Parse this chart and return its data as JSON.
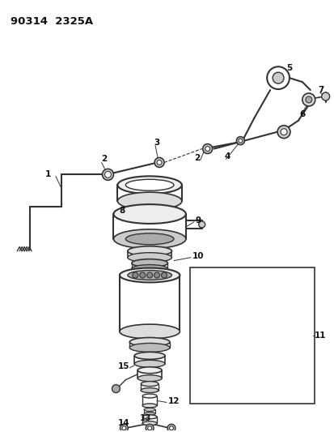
{
  "title": "90314  2325A",
  "bg_color": "#ffffff",
  "line_color": "#333333",
  "label_color": "#111111",
  "fig_width": 4.14,
  "fig_height": 5.33,
  "dpi": 100
}
